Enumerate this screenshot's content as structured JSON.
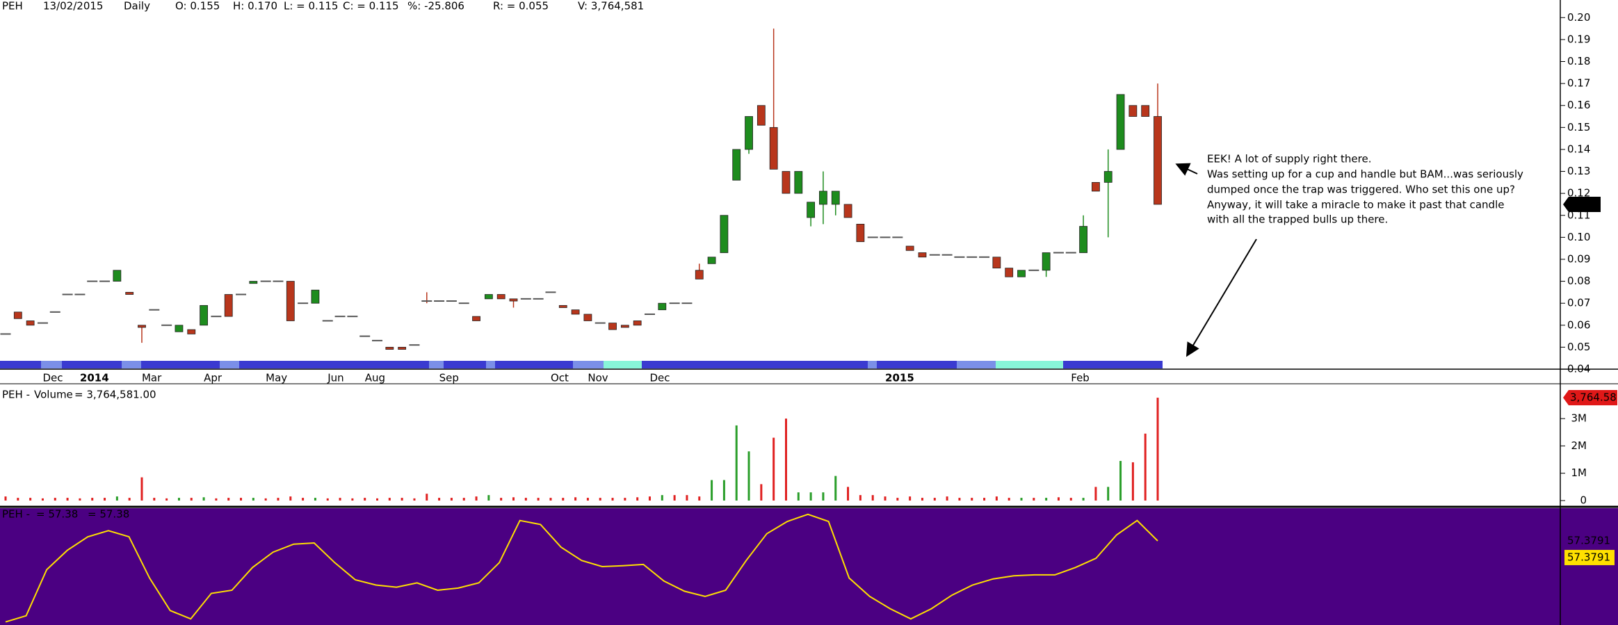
{
  "header": {
    "symbol": "PEH",
    "date": "13/02/2015",
    "period": "Daily",
    "fields": [
      "O: 0.155",
      "H: 0.170",
      "L: = 0.115",
      "C: = 0.115",
      "%: -25.806",
      "R: = 0.055",
      "V: 3,764,581"
    ]
  },
  "annotation": {
    "lines": [
      "EEK! A lot of supply right there.",
      "Was setting up for a cup and handle but BAM...was seriously",
      "dumped once the trap was triggered. Who set this one up?",
      "Anyway, it will take a miracle to make it past that candle",
      "with all the trapped bulls up there."
    ]
  },
  "chart_data": [
    {
      "type": "candlestick",
      "categories": [
        null,
        null,
        null,
        "Dec",
        null,
        null,
        "2014",
        null,
        null,
        null,
        null,
        "Mar",
        null,
        null,
        null,
        null,
        "Apr",
        null,
        null,
        null,
        null,
        "May",
        null,
        null,
        null,
        null,
        "Jun",
        null,
        null,
        "Aug",
        null,
        null,
        null,
        null,
        null,
        "Sep",
        null,
        null,
        null,
        null,
        null,
        null,
        null,
        null,
        "Oct",
        null,
        null,
        "Nov",
        null,
        null,
        null,
        null,
        "Dec",
        null,
        null,
        null,
        null,
        null,
        null,
        null,
        null,
        null,
        null,
        null,
        null,
        null,
        null,
        null,
        null,
        null,
        null,
        "2015",
        null,
        null,
        null,
        null,
        null,
        null,
        null,
        null,
        null,
        null,
        null,
        null,
        null,
        null,
        "Feb",
        null,
        null,
        null,
        null,
        null,
        null,
        null
      ],
      "open": [
        0.056,
        0.066,
        0.062,
        0.061,
        0.066,
        0.074,
        0.074,
        0.08,
        0.08,
        0.08,
        0.075,
        0.06,
        0.067,
        0.06,
        0.057,
        0.058,
        0.06,
        0.064,
        0.074,
        0.074,
        0.079,
        0.08,
        0.08,
        0.08,
        0.07,
        0.07,
        0.062,
        0.064,
        0.064,
        0.055,
        0.053,
        0.05,
        0.05,
        0.051,
        0.071,
        0.071,
        0.071,
        0.07,
        0.064,
        0.072,
        0.074,
        0.072,
        0.072,
        0.072,
        0.075,
        0.069,
        0.067,
        0.065,
        0.061,
        0.061,
        0.06,
        0.062,
        0.065,
        0.067,
        0.07,
        0.07,
        0.085,
        0.088,
        0.093,
        0.126,
        0.14,
        0.16,
        0.15,
        0.13,
        0.12,
        0.109,
        0.115,
        0.115,
        0.115,
        0.106,
        0.1,
        0.1,
        0.1,
        0.096,
        0.093,
        0.092,
        0.092,
        0.091,
        0.091,
        0.091,
        0.091,
        0.086,
        0.082,
        0.085,
        0.085,
        0.093,
        0.093,
        0.093,
        0.125,
        0.125,
        0.14,
        0.16,
        0.16,
        0.155
      ],
      "high": [
        0.056,
        0.066,
        0.062,
        0.061,
        0.066,
        0.074,
        0.074,
        0.08,
        0.08,
        0.085,
        0.075,
        0.06,
        0.067,
        0.06,
        0.06,
        0.058,
        0.069,
        0.064,
        0.074,
        0.074,
        0.08,
        0.08,
        0.08,
        0.08,
        0.07,
        0.076,
        0.062,
        0.064,
        0.064,
        0.055,
        0.053,
        0.05,
        0.05,
        0.051,
        0.075,
        0.071,
        0.071,
        0.07,
        0.064,
        0.074,
        0.074,
        0.072,
        0.072,
        0.072,
        0.075,
        0.069,
        0.067,
        0.065,
        0.061,
        0.061,
        0.06,
        0.062,
        0.065,
        0.07,
        0.07,
        0.07,
        0.088,
        0.091,
        0.11,
        0.14,
        0.155,
        0.16,
        0.195,
        0.13,
        0.13,
        0.116,
        0.13,
        0.121,
        0.115,
        0.106,
        0.1,
        0.1,
        0.1,
        0.096,
        0.093,
        0.092,
        0.092,
        0.091,
        0.091,
        0.091,
        0.091,
        0.086,
        0.085,
        0.085,
        0.093,
        0.093,
        0.093,
        0.11,
        0.125,
        0.14,
        0.165,
        0.16,
        0.16,
        0.17
      ],
      "low": [
        0.056,
        0.063,
        0.06,
        0.061,
        0.066,
        0.074,
        0.074,
        0.08,
        0.08,
        0.08,
        0.074,
        0.052,
        0.067,
        0.06,
        0.057,
        0.056,
        0.06,
        0.064,
        0.064,
        0.074,
        0.079,
        0.08,
        0.08,
        0.062,
        0.07,
        0.07,
        0.062,
        0.064,
        0.064,
        0.055,
        0.053,
        0.049,
        0.049,
        0.051,
        0.07,
        0.071,
        0.071,
        0.07,
        0.062,
        0.072,
        0.072,
        0.068,
        0.072,
        0.072,
        0.075,
        0.068,
        0.065,
        0.062,
        0.061,
        0.058,
        0.059,
        0.06,
        0.065,
        0.067,
        0.07,
        0.07,
        0.081,
        0.088,
        0.093,
        0.126,
        0.138,
        0.151,
        0.131,
        0.12,
        0.12,
        0.105,
        0.106,
        0.11,
        0.109,
        0.098,
        0.1,
        0.1,
        0.1,
        0.094,
        0.091,
        0.092,
        0.092,
        0.091,
        0.091,
        0.091,
        0.086,
        0.082,
        0.082,
        0.085,
        0.082,
        0.093,
        0.093,
        0.093,
        0.121,
        0.1,
        0.14,
        0.155,
        0.155,
        0.115
      ],
      "close": [
        0.056,
        0.063,
        0.06,
        0.061,
        0.066,
        0.074,
        0.074,
        0.08,
        0.08,
        0.085,
        0.074,
        0.059,
        0.067,
        0.06,
        0.06,
        0.056,
        0.069,
        0.064,
        0.064,
        0.074,
        0.08,
        0.08,
        0.08,
        0.062,
        0.07,
        0.076,
        0.062,
        0.064,
        0.064,
        0.055,
        0.053,
        0.049,
        0.049,
        0.051,
        0.071,
        0.071,
        0.071,
        0.07,
        0.062,
        0.074,
        0.072,
        0.071,
        0.072,
        0.072,
        0.075,
        0.068,
        0.065,
        0.062,
        0.061,
        0.058,
        0.059,
        0.06,
        0.065,
        0.07,
        0.07,
        0.07,
        0.081,
        0.091,
        0.11,
        0.14,
        0.155,
        0.151,
        0.131,
        0.12,
        0.13,
        0.116,
        0.121,
        0.121,
        0.109,
        0.098,
        0.1,
        0.1,
        0.1,
        0.094,
        0.091,
        0.092,
        0.092,
        0.091,
        0.091,
        0.091,
        0.086,
        0.082,
        0.085,
        0.085,
        0.093,
        0.093,
        0.093,
        0.105,
        0.121,
        0.13,
        0.165,
        0.155,
        0.155,
        0.115
      ],
      "ylim": [
        0.04,
        0.208
      ],
      "yticks": [
        0.04,
        0.05,
        0.06,
        0.07,
        0.08,
        0.09,
        {
          "value": 0.1,
          "label": "0.10"
        },
        0.11,
        0.12,
        0.13,
        0.14,
        0.15,
        0.16,
        0.17,
        0.18,
        0.19,
        {
          "value": 0.2,
          "label": "0.20"
        }
      ],
      "colors": {
        "up": "#1e8c1e",
        "down": "#b8361c",
        "flat": "#555555"
      }
    },
    {
      "type": "bar",
      "title_prefix": "PEH -",
      "title": "Volume",
      "readout": "= 3,764,581.00",
      "current_label": "3,764.58",
      "values": [
        0.15,
        0.1,
        0.1,
        0.08,
        0.1,
        0.1,
        0.08,
        0.1,
        0.1,
        0.15,
        0.1,
        0.85,
        0.1,
        0.08,
        0.1,
        0.1,
        0.12,
        0.08,
        0.1,
        0.1,
        0.1,
        0.08,
        0.1,
        0.15,
        0.1,
        0.1,
        0.08,
        0.1,
        0.08,
        0.1,
        0.08,
        0.1,
        0.1,
        0.08,
        0.25,
        0.1,
        0.1,
        0.1,
        0.15,
        0.2,
        0.1,
        0.12,
        0.1,
        0.1,
        0.1,
        0.1,
        0.12,
        0.1,
        0.1,
        0.1,
        0.1,
        0.12,
        0.15,
        0.2,
        0.2,
        0.2,
        0.15,
        0.75,
        0.75,
        2.75,
        1.8,
        0.6,
        2.3,
        3.0,
        0.3,
        0.3,
        0.3,
        0.9,
        0.5,
        0.2,
        0.2,
        0.15,
        0.1,
        0.15,
        0.1,
        0.1,
        0.15,
        0.1,
        0.1,
        0.1,
        0.15,
        0.1,
        0.1,
        0.1,
        0.1,
        0.12,
        0.1,
        0.1,
        0.5,
        0.5,
        1.45,
        1.4,
        2.45,
        3.764581
      ],
      "ylim": [
        0,
        4.3
      ],
      "yticks": [
        0,
        {
          "value": 1,
          "label": "1M"
        },
        {
          "value": 2,
          "label": "2M"
        },
        {
          "value": 3,
          "label": "3M"
        }
      ],
      "colors": {
        "up": "#2a9e2a",
        "down": "#e02020",
        "tag": "#e01818"
      }
    },
    {
      "type": "line",
      "title": "PEH -",
      "readouts": [
        "= 57.38",
        "= 57.38"
      ],
      "values": [
        31.0,
        33.0,
        48.0,
        54.3,
        58.7,
        60.7,
        58.7,
        45.3,
        34.7,
        32.0,
        40.3,
        41.3,
        48.7,
        53.7,
        56.3,
        56.7,
        50.3,
        44.7,
        43.0,
        42.3,
        43.7,
        41.3,
        42.0,
        43.7,
        50.3,
        64.0,
        62.7,
        55.3,
        51.0,
        49.0,
        49.3,
        49.7,
        44.3,
        41.0,
        39.3,
        41.3,
        51.0,
        59.7,
        63.7,
        66.0,
        63.7,
        45.3,
        39.3,
        35.3,
        32.0,
        35.3,
        39.7,
        43.0,
        45.0,
        46.0,
        46.3,
        46.3,
        48.7,
        51.7,
        59.3,
        64.0,
        57.3791
      ],
      "ylim": [
        30,
        68
      ],
      "color": "#ffe000",
      "background": "#4b0082"
    }
  ]
}
